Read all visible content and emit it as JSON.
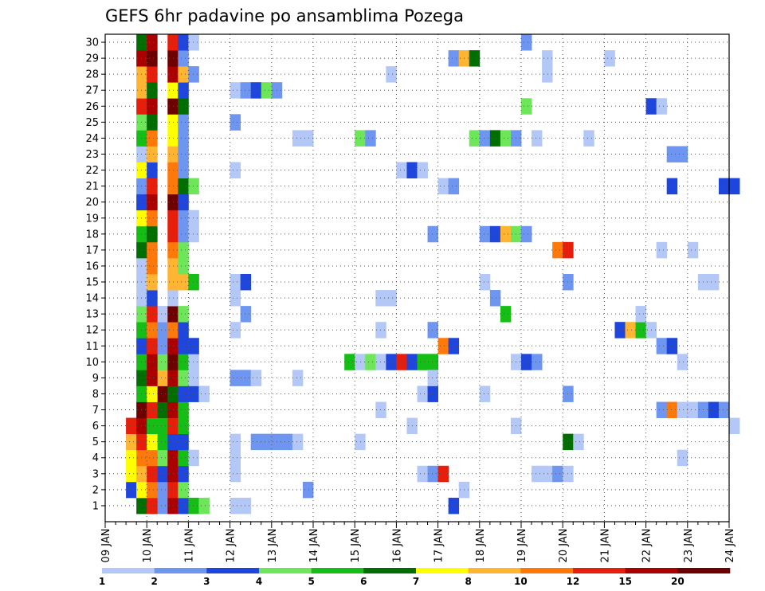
{
  "chart_data": {
    "type": "heatmap",
    "title": "GEFS 6hr padavine po ansamblima Pozega",
    "xlabel": "",
    "ylabel": "",
    "x_tick_labels": [
      "09 JAN",
      "10 JAN",
      "11 JAN",
      "12 JAN",
      "13 JAN",
      "14 JAN",
      "15 JAN",
      "16 JAN",
      "17 JAN",
      "18 JAN",
      "19 JAN",
      "20 JAN",
      "21 JAN",
      "22 JAN",
      "23 JAN",
      "24 JAN"
    ],
    "x_unit": "6-hour step",
    "y_tick_labels": [
      "1",
      "2",
      "3",
      "4",
      "5",
      "6",
      "7",
      "8",
      "9",
      "10",
      "11",
      "12",
      "13",
      "14",
      "15",
      "16",
      "17",
      "18",
      "19",
      "20",
      "21",
      "22",
      "23",
      "24",
      "25",
      "26",
      "27",
      "28",
      "29",
      "30"
    ],
    "grid": true,
    "colorbar": {
      "labels": [
        "1",
        "2",
        "3",
        "4",
        "5",
        "6",
        "7",
        "8",
        "10",
        "12",
        "15",
        "20"
      ],
      "bounds": [
        1,
        2,
        3,
        4,
        5,
        6,
        7,
        8,
        10,
        12,
        15,
        20,
        30
      ],
      "colors": [
        "#b4c8f8",
        "#6e96f0",
        "#1e46dc",
        "#6ee65a",
        "#14be14",
        "#006e00",
        "#ffff00",
        "#ffb432",
        "#ff780a",
        "#e61e0a",
        "#aa0000",
        "#6e0000"
      ]
    },
    "cells": [
      [
        6,
        1,
        1
      ],
      [
        6,
        2,
        1
      ],
      [
        6,
        3,
        2
      ],
      [
        6,
        4,
        3
      ],
      [
        6,
        5,
        4
      ],
      [
        3,
        2,
        2
      ],
      [
        3,
        4,
        0
      ],
      [
        3,
        5,
        0
      ],
      [
        3,
        6,
        0
      ],
      [
        6,
        6,
        4
      ],
      [
        6,
        7,
        5
      ],
      [
        6,
        8,
        11
      ],
      [
        6,
        9,
        7
      ],
      [
        3,
        3,
        6
      ],
      [
        3,
        4,
        6
      ],
      [
        3,
        5,
        7
      ],
      [
        3,
        6,
        9
      ],
      [
        6,
        10,
        3
      ],
      [
        6,
        11,
        1
      ],
      [
        6,
        12,
        1
      ],
      [
        6,
        13,
        0
      ],
      [
        4,
        1,
        5
      ],
      [
        4,
        2,
        6
      ],
      [
        4,
        3,
        7
      ],
      [
        4,
        4,
        8
      ],
      [
        4,
        5,
        9
      ],
      [
        4,
        6,
        10
      ],
      [
        4,
        7,
        11
      ],
      [
        4,
        8,
        4
      ],
      [
        4,
        9,
        5
      ],
      [
        4,
        10,
        4
      ],
      [
        4,
        11,
        2
      ],
      [
        4,
        12,
        4
      ],
      [
        4,
        13,
        3
      ],
      [
        4,
        14,
        0
      ],
      [
        4,
        15,
        0
      ],
      [
        4,
        16,
        0
      ],
      [
        4,
        17,
        5
      ],
      [
        4,
        18,
        4
      ],
      [
        4,
        19,
        6
      ],
      [
        4,
        20,
        2
      ],
      [
        4,
        21,
        1
      ],
      [
        4,
        22,
        6
      ],
      [
        4,
        23,
        0
      ],
      [
        4,
        24,
        4
      ],
      [
        4,
        25,
        3
      ],
      [
        4,
        26,
        9
      ],
      [
        4,
        27,
        7
      ],
      [
        4,
        28,
        7
      ],
      [
        4,
        29,
        10
      ],
      [
        4,
        30,
        5
      ],
      [
        5,
        1,
        9
      ],
      [
        5,
        2,
        8
      ],
      [
        5,
        3,
        9
      ],
      [
        5,
        4,
        8
      ],
      [
        5,
        5,
        6
      ],
      [
        5,
        6,
        4
      ],
      [
        5,
        7,
        9
      ],
      [
        5,
        8,
        6
      ],
      [
        5,
        9,
        10
      ],
      [
        5,
        10,
        10
      ],
      [
        5,
        11,
        9
      ],
      [
        5,
        12,
        8
      ],
      [
        5,
        13,
        9
      ],
      [
        5,
        14,
        2
      ],
      [
        5,
        15,
        7
      ],
      [
        5,
        16,
        8
      ],
      [
        5,
        17,
        8
      ],
      [
        5,
        18,
        5
      ],
      [
        5,
        19,
        8
      ],
      [
        5,
        20,
        10
      ],
      [
        5,
        21,
        9
      ],
      [
        5,
        22,
        2
      ],
      [
        5,
        23,
        7
      ],
      [
        5,
        24,
        8
      ],
      [
        5,
        25,
        5
      ],
      [
        5,
        26,
        10
      ],
      [
        5,
        27,
        5
      ],
      [
        5,
        28,
        9
      ],
      [
        5,
        29,
        11
      ],
      [
        5,
        30,
        10
      ],
      [
        7,
        1,
        10
      ],
      [
        7,
        2,
        9
      ],
      [
        7,
        3,
        10
      ],
      [
        7,
        4,
        10
      ],
      [
        7,
        5,
        2
      ],
      [
        7,
        6,
        9
      ],
      [
        7,
        7,
        10
      ],
      [
        7,
        8,
        5
      ],
      [
        7,
        9,
        10
      ],
      [
        7,
        10,
        11
      ],
      [
        7,
        11,
        10
      ],
      [
        7,
        12,
        8
      ],
      [
        7,
        13,
        11
      ],
      [
        7,
        14,
        0
      ],
      [
        7,
        15,
        7
      ],
      [
        7,
        16,
        7
      ],
      [
        7,
        17,
        8
      ],
      [
        7,
        18,
        9
      ],
      [
        7,
        19,
        9
      ],
      [
        7,
        20,
        11
      ],
      [
        7,
        21,
        8
      ],
      [
        7,
        22,
        8
      ],
      [
        7,
        23,
        7
      ],
      [
        7,
        24,
        6
      ],
      [
        7,
        25,
        6
      ],
      [
        7,
        26,
        11
      ],
      [
        7,
        27,
        6
      ],
      [
        7,
        28,
        10
      ],
      [
        7,
        29,
        11
      ],
      [
        7,
        30,
        9
      ],
      [
        8,
        1,
        2
      ],
      [
        8,
        2,
        3
      ],
      [
        8,
        3,
        2
      ],
      [
        8,
        4,
        4
      ],
      [
        8,
        5,
        2
      ],
      [
        8,
        6,
        4
      ],
      [
        8,
        7,
        4
      ],
      [
        8,
        8,
        2
      ],
      [
        8,
        9,
        3
      ],
      [
        8,
        10,
        4
      ],
      [
        8,
        11,
        2
      ],
      [
        8,
        12,
        2
      ],
      [
        8,
        13,
        3
      ],
      [
        8,
        15,
        7
      ],
      [
        8,
        16,
        3
      ],
      [
        8,
        17,
        3
      ],
      [
        8,
        18,
        1
      ],
      [
        8,
        19,
        1
      ],
      [
        8,
        20,
        2
      ],
      [
        8,
        21,
        5
      ],
      [
        8,
        22,
        1
      ],
      [
        8,
        23,
        1
      ],
      [
        8,
        24,
        1
      ],
      [
        8,
        25,
        1
      ],
      [
        8,
        26,
        5
      ],
      [
        8,
        27,
        2
      ],
      [
        8,
        28,
        7
      ],
      [
        8,
        29,
        1
      ],
      [
        8,
        30,
        2
      ],
      [
        9,
        1,
        4
      ],
      [
        9,
        4,
        0
      ],
      [
        9,
        8,
        2
      ],
      [
        9,
        9,
        0
      ],
      [
        9,
        10,
        0
      ],
      [
        9,
        11,
        2
      ],
      [
        9,
        15,
        4
      ],
      [
        9,
        18,
        0
      ],
      [
        9,
        19,
        0
      ],
      [
        9,
        21,
        3
      ],
      [
        9,
        28,
        1
      ],
      [
        9,
        30,
        0
      ],
      [
        10,
        1,
        3
      ],
      [
        10,
        8,
        0
      ],
      [
        13,
        1,
        0
      ],
      [
        13,
        3,
        0
      ],
      [
        13,
        4,
        0
      ],
      [
        13,
        5,
        0
      ],
      [
        13,
        9,
        1
      ],
      [
        13,
        12,
        0
      ],
      [
        13,
        14,
        0
      ],
      [
        13,
        15,
        0
      ],
      [
        13,
        22,
        0
      ],
      [
        13,
        25,
        1
      ],
      [
        13,
        27,
        0
      ],
      [
        14,
        1,
        0
      ],
      [
        14,
        9,
        1
      ],
      [
        14,
        13,
        1
      ],
      [
        14,
        15,
        2
      ],
      [
        14,
        27,
        1
      ],
      [
        15,
        5,
        1
      ],
      [
        15,
        9,
        0
      ],
      [
        15,
        27,
        2
      ],
      [
        16,
        5,
        1
      ],
      [
        16,
        27,
        3
      ],
      [
        17,
        5,
        1
      ],
      [
        17,
        27,
        1
      ],
      [
        18,
        5,
        1
      ],
      [
        19,
        5,
        0
      ],
      [
        19,
        9,
        0
      ],
      [
        19,
        24,
        0
      ],
      [
        20,
        2,
        1
      ],
      [
        20,
        24,
        0
      ],
      [
        24,
        10,
        4
      ],
      [
        25,
        5,
        0
      ],
      [
        25,
        10,
        0
      ],
      [
        25,
        24,
        3
      ],
      [
        26,
        10,
        3
      ],
      [
        26,
        24,
        1
      ],
      [
        27,
        7,
        0
      ],
      [
        27,
        10,
        0
      ],
      [
        27,
        12,
        0
      ],
      [
        27,
        14,
        0
      ],
      [
        28,
        10,
        2
      ],
      [
        28,
        14,
        0
      ],
      [
        28,
        28,
        0
      ],
      [
        29,
        10,
        9
      ],
      [
        29,
        22,
        0
      ],
      [
        30,
        6,
        0
      ],
      [
        30,
        10,
        2
      ],
      [
        30,
        22,
        2
      ],
      [
        31,
        8,
        0
      ],
      [
        31,
        10,
        4
      ],
      [
        31,
        22,
        0
      ],
      [
        31,
        3,
        0
      ],
      [
        32,
        8,
        2
      ],
      [
        32,
        10,
        4
      ],
      [
        32,
        3,
        1
      ],
      [
        32,
        9,
        0
      ],
      [
        32,
        12,
        1
      ],
      [
        32,
        18,
        1
      ],
      [
        33,
        3,
        9
      ],
      [
        33,
        11,
        8
      ],
      [
        33,
        21,
        0
      ],
      [
        34,
        1,
        2
      ],
      [
        34,
        11,
        2
      ],
      [
        34,
        21,
        1
      ],
      [
        34,
        29,
        1
      ],
      [
        35,
        2,
        0
      ],
      [
        35,
        29,
        7
      ],
      [
        36,
        29,
        5
      ],
      [
        36,
        24,
        3
      ],
      [
        37,
        8,
        0
      ],
      [
        37,
        15,
        0
      ],
      [
        37,
        18,
        1
      ],
      [
        37,
        24,
        1
      ],
      [
        38,
        14,
        1
      ],
      [
        38,
        18,
        2
      ],
      [
        38,
        24,
        5
      ],
      [
        39,
        13,
        4
      ],
      [
        39,
        18,
        7
      ],
      [
        39,
        24,
        3
      ],
      [
        40,
        6,
        0
      ],
      [
        40,
        10,
        0
      ],
      [
        40,
        18,
        3
      ],
      [
        40,
        24,
        1
      ],
      [
        41,
        10,
        2
      ],
      [
        41,
        18,
        1
      ],
      [
        41,
        26,
        3
      ],
      [
        41,
        30,
        1
      ],
      [
        42,
        10,
        1
      ],
      [
        42,
        3,
        0
      ],
      [
        42,
        24,
        0
      ],
      [
        43,
        3,
        0
      ],
      [
        43,
        28,
        0
      ],
      [
        43,
        29,
        0
      ],
      [
        44,
        3,
        1
      ],
      [
        44,
        17,
        8
      ],
      [
        45,
        3,
        0
      ],
      [
        45,
        8,
        1
      ],
      [
        45,
        15,
        1
      ],
      [
        45,
        17,
        9
      ],
      [
        45,
        5,
        5
      ],
      [
        46,
        5,
        0
      ],
      [
        47,
        24,
        0
      ],
      [
        49,
        29,
        0
      ],
      [
        50,
        12,
        2
      ],
      [
        51,
        12,
        7
      ],
      [
        52,
        12,
        4
      ],
      [
        52,
        13,
        0
      ],
      [
        53,
        12,
        0
      ],
      [
        53,
        26,
        2
      ],
      [
        54,
        7,
        1
      ],
      [
        54,
        11,
        1
      ],
      [
        54,
        17,
        0
      ],
      [
        54,
        26,
        0
      ],
      [
        55,
        7,
        8
      ],
      [
        55,
        11,
        2
      ],
      [
        55,
        23,
        1
      ],
      [
        55,
        21,
        2
      ],
      [
        56,
        7,
        0
      ],
      [
        56,
        10,
        0
      ],
      [
        56,
        4,
        0
      ],
      [
        56,
        23,
        1
      ],
      [
        57,
        7,
        0
      ],
      [
        57,
        17,
        0
      ],
      [
        58,
        7,
        1
      ],
      [
        58,
        15,
        0
      ],
      [
        59,
        7,
        2
      ],
      [
        59,
        15,
        0
      ],
      [
        60,
        7,
        1
      ],
      [
        60,
        21,
        2
      ],
      [
        61,
        6,
        0
      ],
      [
        61,
        21,
        2
      ]
    ]
  }
}
